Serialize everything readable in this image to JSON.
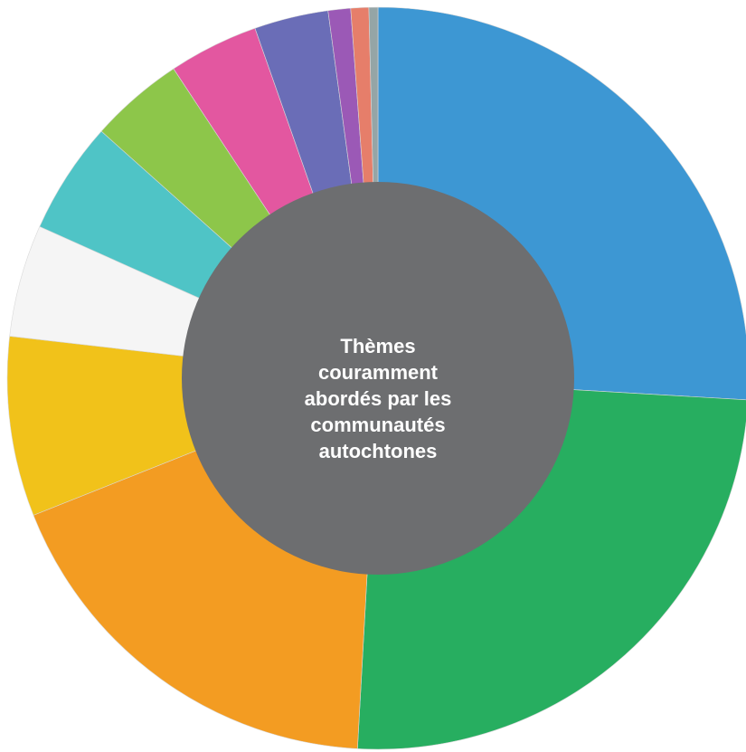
{
  "chart_data": {
    "type": "pie",
    "variant": "donut",
    "title": "Thèmes couramment abordés par les communautés autochtones",
    "title_lines": [
      "Thèmes",
      "couramment",
      "abordés par les",
      "communautés",
      "autochtones"
    ],
    "categories": [
      "",
      "",
      "",
      "",
      "",
      "",
      "",
      "",
      "",
      "",
      "",
      ""
    ],
    "values": [
      26.5,
      25.5,
      18.5,
      8.0,
      5.0,
      5.0,
      4.2,
      4.0,
      3.3,
      1.0,
      0.8,
      0.4
    ],
    "colors": [
      "#3d97d3",
      "#27ae60",
      "#f39c22",
      "#f1c21a",
      "#f5f5f5",
      "#4fc4c6",
      "#8dc64a",
      "#e357a0",
      "#6a6db7",
      "#9b59b6",
      "#e67e6a",
      "#95a5a6"
    ],
    "center_color": "#6d6e70",
    "legend": "none"
  }
}
